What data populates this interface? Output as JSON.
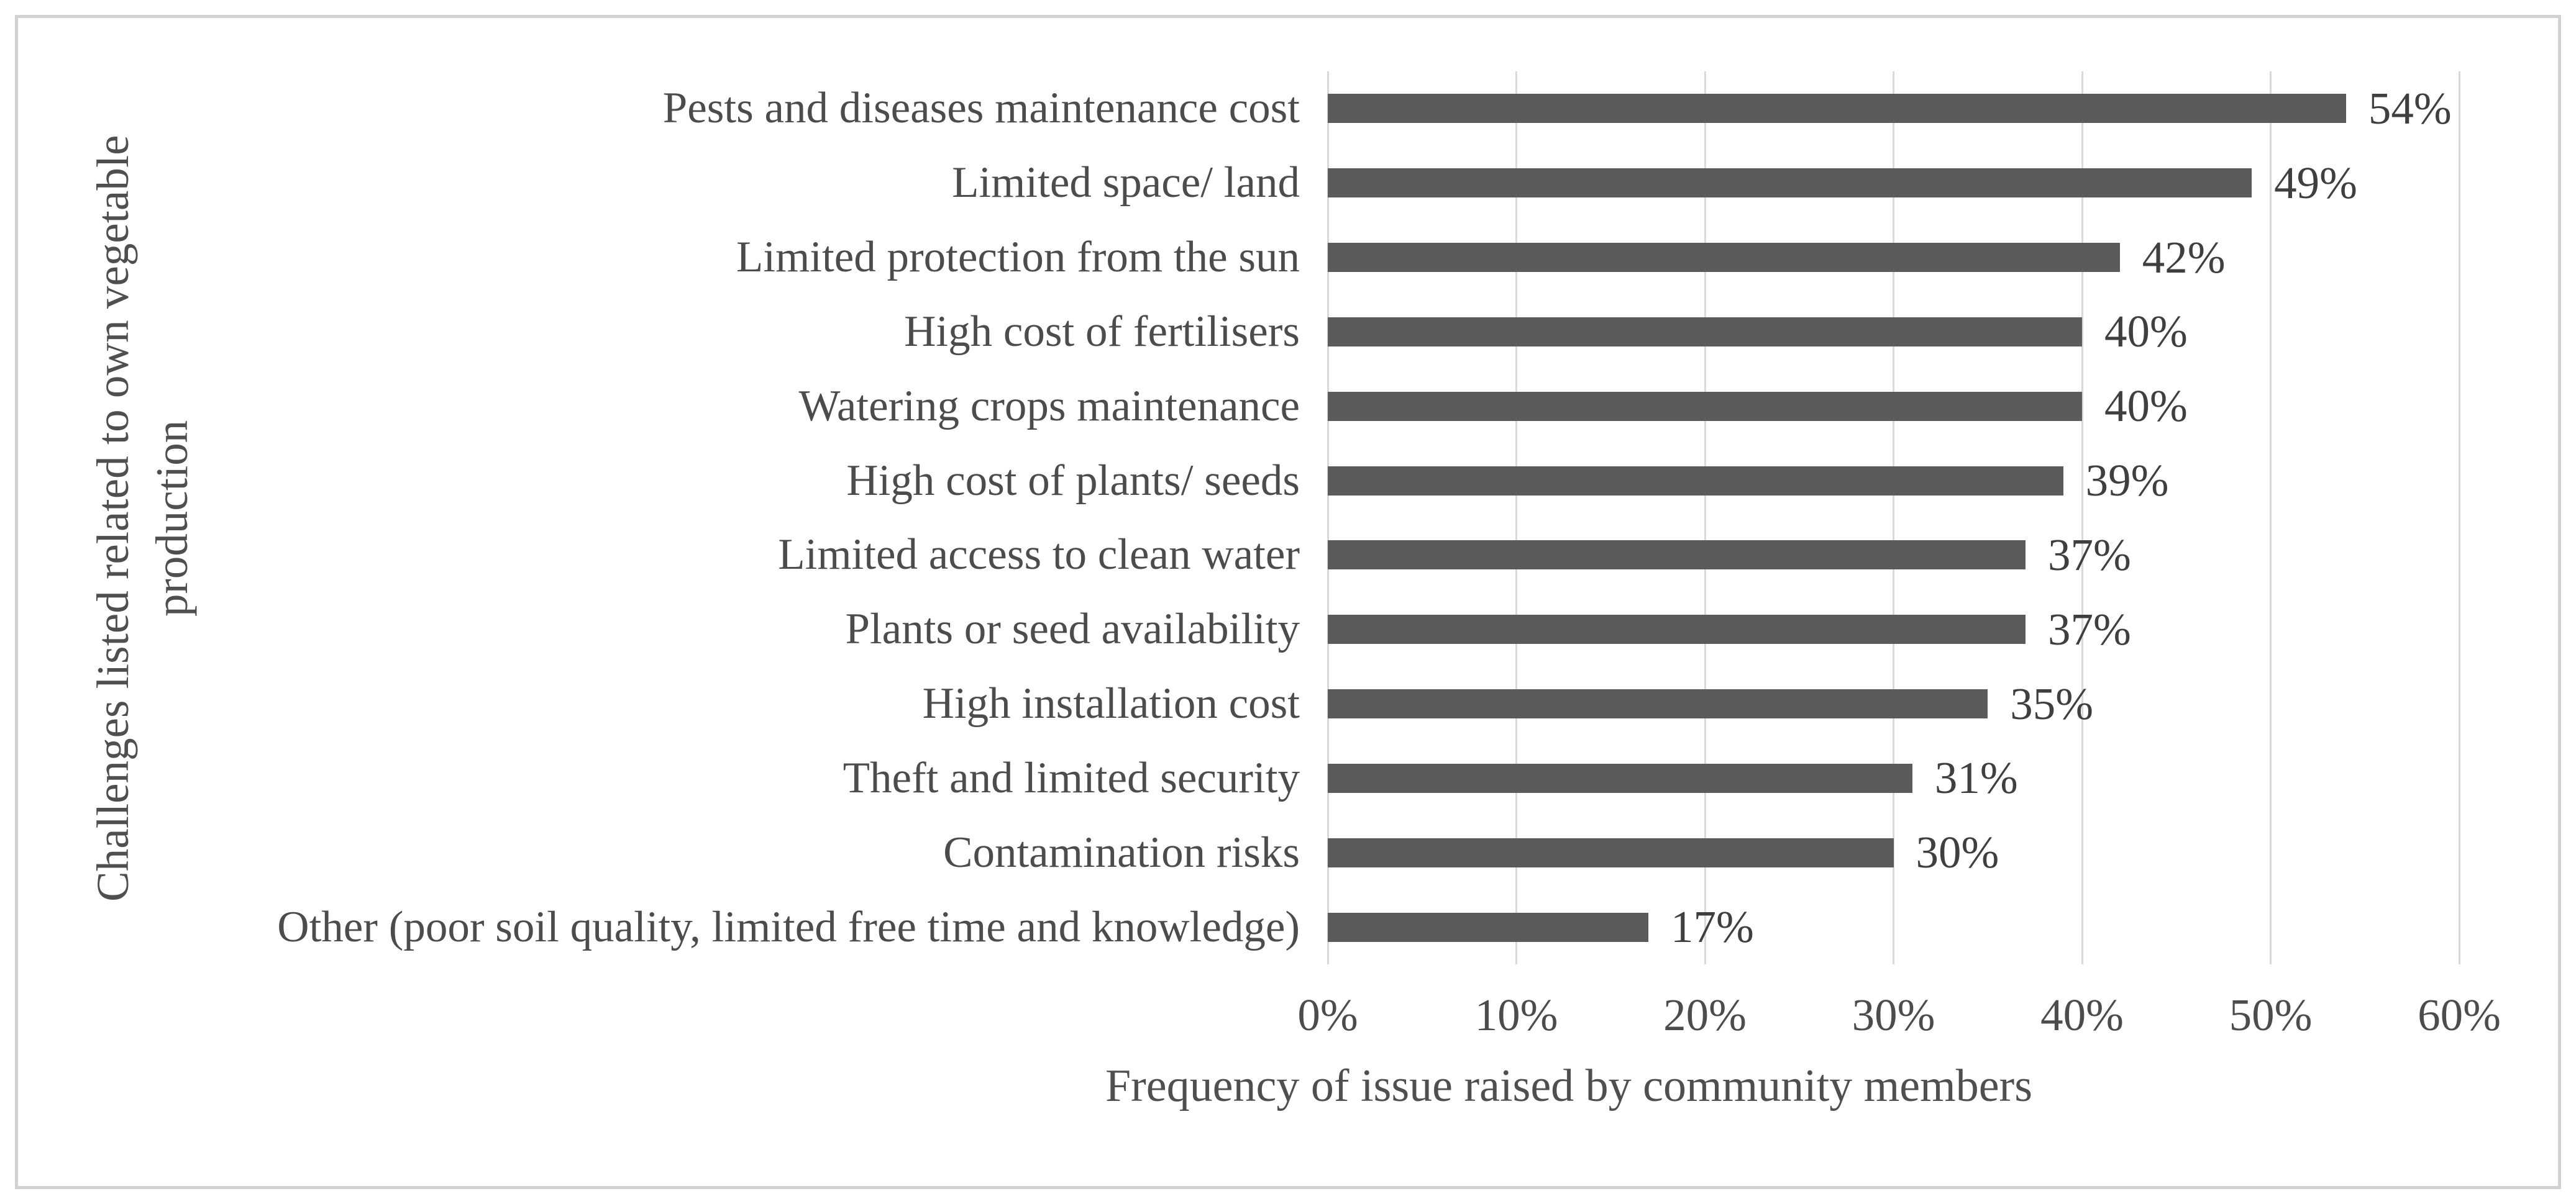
{
  "chart_data": {
    "type": "bar",
    "orientation": "horizontal",
    "title": "",
    "categories": [
      "Pests and diseases maintenance cost",
      "Limited space/ land",
      "Limited protection from the sun",
      "High cost of fertilisers",
      "Watering crops maintenance",
      "High cost of plants/ seeds",
      "Limited access to clean water",
      "Plants or seed availability",
      "High installation cost",
      "Theft and limited security",
      "Contamination risks",
      "Other (poor soil quality, limited free time and knowledge)"
    ],
    "values": [
      54,
      49,
      42,
      40,
      40,
      39,
      37,
      37,
      35,
      31,
      30,
      17
    ],
    "data_labels": [
      "54%",
      "49%",
      "42%",
      "40%",
      "40%",
      "39%",
      "37%",
      "37%",
      "35%",
      "31%",
      "30%",
      "17%"
    ],
    "xlabel": "Frequency of issue raised by community members",
    "ylabel": "Challenges listed related to own vegetable production",
    "ylabel_lines": [
      "Challenges listed related to own vegetable",
      "production"
    ],
    "xlim": [
      0,
      60
    ],
    "xtick_labels": [
      "0%",
      "10%",
      "20%",
      "30%",
      "40%",
      "50%",
      "60%"
    ],
    "grid": true,
    "legend": false,
    "colors": {
      "bar": "#5b5b5b",
      "gridline": "#d9d9d9",
      "text": "#4c4c4c",
      "data_label_text": "#3f3f3f",
      "frame_border": "#d2d0d0",
      "background": "#ffffff"
    }
  }
}
